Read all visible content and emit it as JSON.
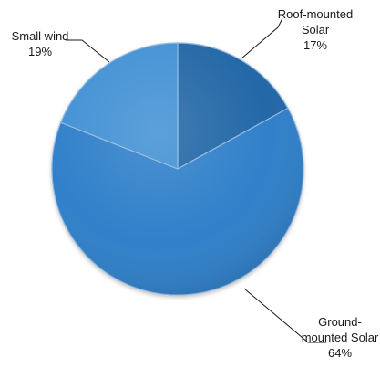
{
  "chart_data": {
    "type": "pie",
    "title": "",
    "slices": [
      {
        "label_lines": [
          "Roof-mounted",
          "Solar"
        ],
        "value": 17,
        "display": "17%",
        "color": "#1a63a4"
      },
      {
        "label_lines": [
          "Ground-",
          "mounted Solar"
        ],
        "value": 64,
        "display": "64%",
        "color": "#2c7cc8"
      },
      {
        "label_lines": [
          "Small wind"
        ],
        "value": 19,
        "display": "19%",
        "color": "#3c8ed3"
      }
    ],
    "legend": "none",
    "label_style": "callout labels with leader lines"
  }
}
